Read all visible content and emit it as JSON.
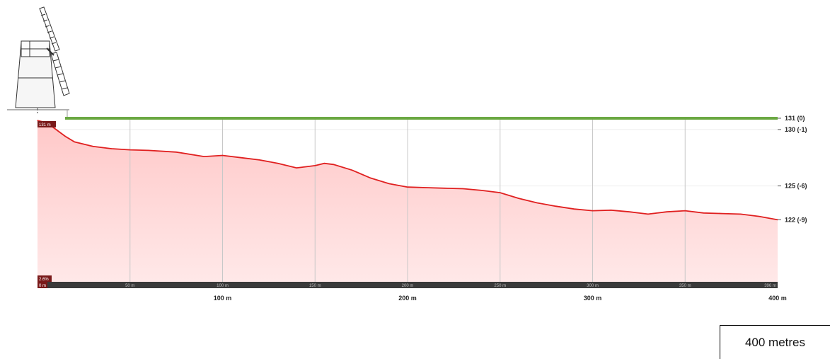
{
  "chart_data": {
    "type": "area",
    "xlabel": "",
    "ylabel": "",
    "xlim": [
      0,
      400
    ],
    "ylim": [
      116.5,
      131.5
    ],
    "x": [
      0,
      5,
      10,
      15,
      20,
      30,
      40,
      50,
      60,
      75,
      90,
      100,
      110,
      120,
      130,
      140,
      150,
      155,
      160,
      170,
      180,
      190,
      200,
      210,
      220,
      230,
      240,
      250,
      260,
      270,
      280,
      290,
      300,
      310,
      320,
      330,
      340,
      350,
      360,
      370,
      380,
      390,
      400
    ],
    "elevation": [
      130.8,
      130.6,
      130.0,
      129.4,
      128.9,
      128.5,
      128.3,
      128.2,
      128.15,
      128.0,
      127.6,
      127.7,
      127.5,
      127.3,
      127.0,
      126.6,
      126.8,
      127.0,
      126.9,
      126.4,
      125.7,
      125.2,
      124.9,
      124.85,
      124.8,
      124.75,
      124.6,
      124.4,
      123.9,
      123.5,
      123.2,
      122.95,
      122.8,
      122.85,
      122.7,
      122.5,
      122.7,
      122.8,
      122.6,
      122.55,
      122.5,
      122.3,
      122.0
    ],
    "ref_line": {
      "elevation": 131,
      "color": "#6aa842"
    },
    "right_labels": [
      {
        "value": 131,
        "text": "131 (0)"
      },
      {
        "value": 130,
        "text": "130 (-1)"
      },
      {
        "value": 125,
        "text": "125 (-6)"
      },
      {
        "value": 122,
        "text": "122 (-9)"
      }
    ],
    "bottom_labels": [
      {
        "value": 100,
        "text": "100 m"
      },
      {
        "value": 200,
        "text": "200 m"
      },
      {
        "value": 300,
        "text": "300 m"
      },
      {
        "value": 400,
        "text": "400 m"
      }
    ],
    "gridlines_x": [
      50,
      100,
      150,
      200,
      250,
      300,
      350
    ],
    "grid": true,
    "start_badge": "131 m",
    "bottom_badge_top": "2.6%",
    "bottom_badge": "0 m",
    "strip_labels": [
      {
        "value": 50,
        "text": "50 m"
      },
      {
        "value": 100,
        "text": "100 m"
      },
      {
        "value": 150,
        "text": "150 m"
      },
      {
        "value": 200,
        "text": "200 m"
      },
      {
        "value": 250,
        "text": "250 m"
      },
      {
        "value": 300,
        "text": "300 m"
      },
      {
        "value": 350,
        "text": "350 m"
      },
      {
        "value": 396,
        "text": "396 m"
      }
    ],
    "line_color": "#e02020",
    "fill_color_top": "#ffc8c8",
    "fill_color_bottom": "#ffe8e8"
  },
  "scale_label": "400 metres"
}
